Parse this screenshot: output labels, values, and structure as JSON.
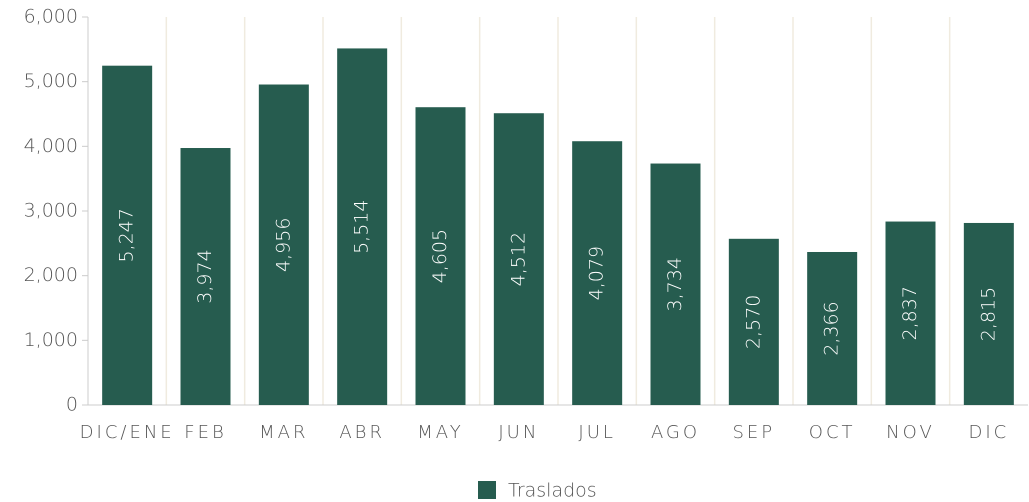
{
  "chart_data": {
    "type": "bar",
    "categories": [
      "DIC/ENE",
      "FEB",
      "MAR",
      "ABR",
      "MAY",
      "JUN",
      "JUL",
      "AGO",
      "SEP",
      "OCT",
      "NOV",
      "DIC"
    ],
    "series": [
      {
        "name": "Traslados",
        "color": "#265c4f",
        "values": [
          5247,
          3974,
          4956,
          5514,
          4605,
          4512,
          4079,
          3734,
          2570,
          2366,
          2837,
          2815
        ],
        "value_labels": [
          "5,247",
          "3,974",
          "4,956",
          "5,514",
          "4,605",
          "4,512",
          "4,079",
          "3,734",
          "2,570",
          "2,366",
          "2,837",
          "2,815"
        ]
      }
    ],
    "ylim": [
      0,
      6000
    ],
    "yticks": [
      0,
      {
        "value": 1000,
        "label": "1,000"
      },
      {
        "value": 2000,
        "label": "2,000"
      },
      {
        "value": 3000,
        "label": "3,000"
      },
      {
        "value": 4000,
        "label": "4,000"
      },
      {
        "value": 5000,
        "label": "5,000"
      },
      {
        "value": 6000,
        "label": "6,000"
      }
    ],
    "grid": true,
    "legend": "bottom"
  }
}
